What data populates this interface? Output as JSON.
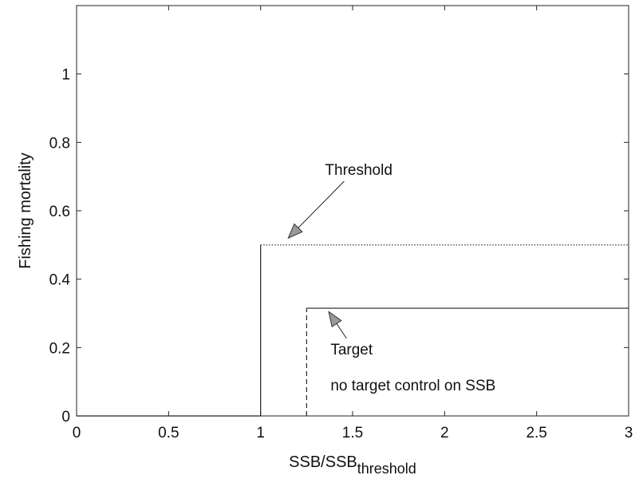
{
  "chart_data": {
    "type": "line",
    "xlabel": "SSB/SSB",
    "xlabel_subscript": "threshold",
    "ylabel": "Fishing mortality",
    "xlim": [
      0,
      3
    ],
    "ylim": [
      0,
      1.2
    ],
    "xticks": [
      0,
      0.5,
      1,
      1.5,
      2,
      2.5,
      3
    ],
    "xtick_labels": [
      "0",
      "0.5",
      "1",
      "1.5",
      "2",
      "2.5",
      "3"
    ],
    "yticks": [
      0,
      0.2,
      0.4,
      0.6,
      0.8,
      1
    ],
    "ytick_labels": [
      "0",
      "0.2",
      "0.4",
      "0.6",
      "0.8",
      "1"
    ],
    "grid": false,
    "series": [
      {
        "name": "Threshold",
        "style": "solid-vertical-dotted-horizontal",
        "x": [
          0,
          1,
          1,
          3
        ],
        "y": [
          0,
          0,
          0.5,
          0.5
        ]
      },
      {
        "name": "Target",
        "style": "dashed-vertical-solid-horizontal",
        "x": [
          1.25,
          1.25,
          3
        ],
        "y": [
          0,
          0.315,
          0.315
        ]
      }
    ],
    "annotations": [
      {
        "text": "Threshold",
        "x": 1.35,
        "y": 0.705,
        "arrow_to": [
          1.15,
          0.52
        ]
      },
      {
        "text": "Target",
        "x": 1.38,
        "y": 0.18,
        "arrow_to": [
          1.37,
          0.305
        ]
      },
      {
        "text": "no target control on SSB",
        "x": 1.38,
        "y": 0.075
      }
    ]
  }
}
